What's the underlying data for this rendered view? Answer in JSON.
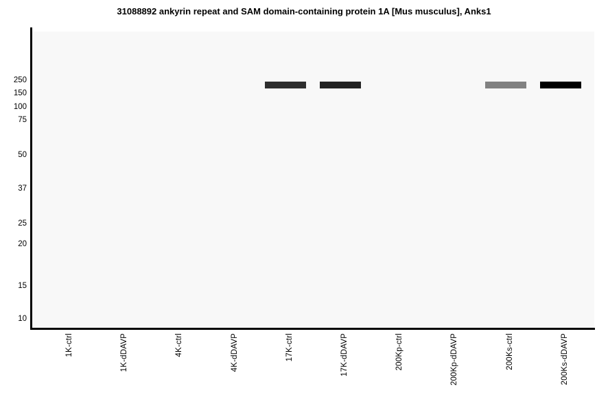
{
  "chart_data": {
    "type": "heatmap",
    "subtype": "simulated-western-blot-gel",
    "title": "31088892 ankyrin repeat and SAM domain-containing protein 1A [Mus musculus], Anks1",
    "xlabel": "",
    "ylabel": "",
    "lanes": [
      "1K-ctrl",
      "1K-dDAVP",
      "4K-ctrl",
      "4K-dDAVP",
      "17K-ctrl",
      "17K-dDAVP",
      "200Kp-ctrl",
      "200Kp-dDAVP",
      "200Ks-ctrl",
      "200Ks-dDAVP"
    ],
    "mw_markers_kda": [
      {
        "label": "250",
        "value": 250,
        "pos": 0.164
      },
      {
        "label": "150",
        "value": 150,
        "pos": 0.21
      },
      {
        "label": "100",
        "value": 100,
        "pos": 0.256
      },
      {
        "label": "75",
        "value": 75,
        "pos": 0.3
      },
      {
        "label": "50",
        "value": 50,
        "pos": 0.416
      },
      {
        "label": "37",
        "value": 37,
        "pos": 0.531
      },
      {
        "label": "25",
        "value": 25,
        "pos": 0.647
      },
      {
        "label": "20",
        "value": 20,
        "pos": 0.718
      },
      {
        "label": "15",
        "value": 15,
        "pos": 0.857
      },
      {
        "label": "10",
        "value": 10,
        "pos": 0.968
      }
    ],
    "bands": [
      {
        "lane": "17K-ctrl",
        "lane_index": 4,
        "approx_mw_kda": 200,
        "pos": 0.18,
        "color": "#2e2e2e"
      },
      {
        "lane": "17K-dDAVP",
        "lane_index": 5,
        "approx_mw_kda": 200,
        "pos": 0.18,
        "color": "#232323"
      },
      {
        "lane": "200Ks-ctrl",
        "lane_index": 8,
        "approx_mw_kda": 200,
        "pos": 0.18,
        "color": "#828282"
      },
      {
        "lane": "200Ks-dDAVP",
        "lane_index": 9,
        "approx_mw_kda": 200,
        "pos": 0.18,
        "color": "#000000"
      }
    ],
    "layout": {
      "grid": false,
      "legend": "none",
      "x_tick_rotation_deg": 90,
      "y_axis_side": "left"
    },
    "colors": {
      "page_bg": "#ffffff",
      "plot_bg": "#f8f8f8",
      "axis": "#000000",
      "text": "#000000"
    }
  }
}
